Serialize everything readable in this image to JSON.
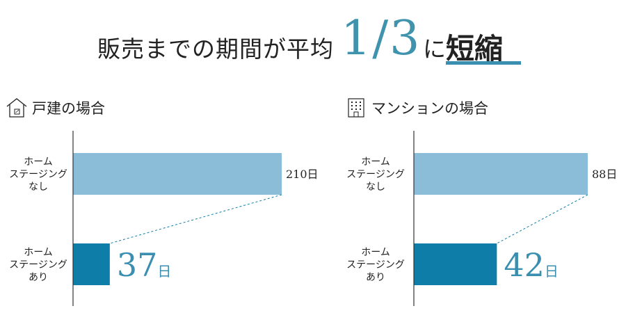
{
  "headline": {
    "prefix": "販売までの期間が平均",
    "fraction": "1/3",
    "particle": "に",
    "emphasis": "短縮"
  },
  "colors": {
    "without": "#8bbdd9",
    "with": "#0e7ea8",
    "highlight_text": "#3a8fb0",
    "axis": "#333333"
  },
  "sections": [
    {
      "icon": "house-icon",
      "title": "戸建の場合"
    },
    {
      "icon": "building-icon",
      "title": "マンションの場合"
    }
  ],
  "chart_data": [
    {
      "type": "bar",
      "title": "戸建の場合",
      "categories": [
        "ホーム\nステージング\nなし",
        "ホーム\nステージング\nあり"
      ],
      "values": [
        210,
        37
      ],
      "value_labels": [
        "210",
        "37"
      ],
      "unit": "日",
      "xlim": [
        0,
        210
      ]
    },
    {
      "type": "bar",
      "title": "マンションの場合",
      "categories": [
        "ホーム\nステージング\nなし",
        "ホーム\nステージング\nあり"
      ],
      "values": [
        88,
        42
      ],
      "value_labels": [
        "88",
        "42"
      ],
      "unit": "日",
      "xlim": [
        0,
        88
      ]
    }
  ]
}
